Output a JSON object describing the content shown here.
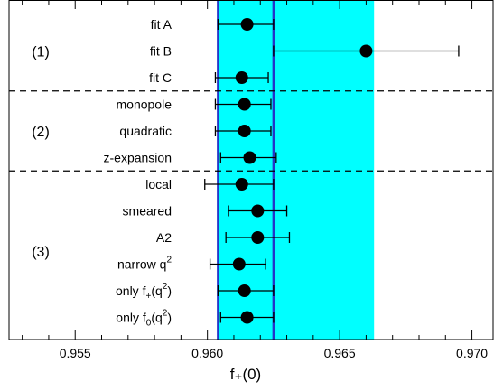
{
  "chart_data": {
    "type": "scatter",
    "orientation": "horizontal-errorbar",
    "xlabel": "f₊(0)",
    "xlim": [
      0.9525,
      0.9708
    ],
    "xticks": [
      "0.955",
      "0.960",
      "0.965",
      "0.970"
    ],
    "xtick_values": [
      0.955,
      0.96,
      0.965,
      0.97
    ],
    "inner_band": {
      "min": 0.9604,
      "max": 0.9625,
      "color": "#2436c8"
    },
    "outer_band": {
      "min": 0.9604,
      "max": 0.9663,
      "color": "#00ffff"
    },
    "groups": [
      {
        "label": "(1)",
        "rows": [
          0,
          1,
          2
        ]
      },
      {
        "label": "(2)",
        "rows": [
          3,
          4,
          5
        ]
      },
      {
        "label": "(3)",
        "rows": [
          6,
          7,
          8,
          9,
          10,
          11
        ]
      }
    ],
    "points": [
      {
        "label": "fit A",
        "value": 0.9615,
        "err_low": 0.9604,
        "err_high": 0.9625
      },
      {
        "label": "fit B",
        "value": 0.966,
        "err_low": 0.9625,
        "err_high": 0.9695
      },
      {
        "label": "fit C",
        "value": 0.9613,
        "err_low": 0.9603,
        "err_high": 0.9623
      },
      {
        "label": "monopole",
        "value": 0.9614,
        "err_low": 0.9603,
        "err_high": 0.9624
      },
      {
        "label": "quadratic",
        "value": 0.9614,
        "err_low": 0.9603,
        "err_high": 0.9624
      },
      {
        "label": "z-expansion",
        "value": 0.9616,
        "err_low": 0.9605,
        "err_high": 0.9626
      },
      {
        "label": "local",
        "value": 0.9613,
        "err_low": 0.9599,
        "err_high": 0.9625
      },
      {
        "label": "smeared",
        "value": 0.9619,
        "err_low": 0.9608,
        "err_high": 0.963
      },
      {
        "label": "A2",
        "value": 0.9619,
        "err_low": 0.9607,
        "err_high": 0.9631
      },
      {
        "label": "narrow q²",
        "value": 0.9612,
        "err_low": 0.9601,
        "err_high": 0.9622
      },
      {
        "label": "only f₊(q²)",
        "value": 0.9614,
        "err_low": 0.9604,
        "err_high": 0.9625
      },
      {
        "label": "only f₀(q²)",
        "value": 0.9615,
        "err_low": 0.9605,
        "err_high": 0.9625
      }
    ]
  }
}
